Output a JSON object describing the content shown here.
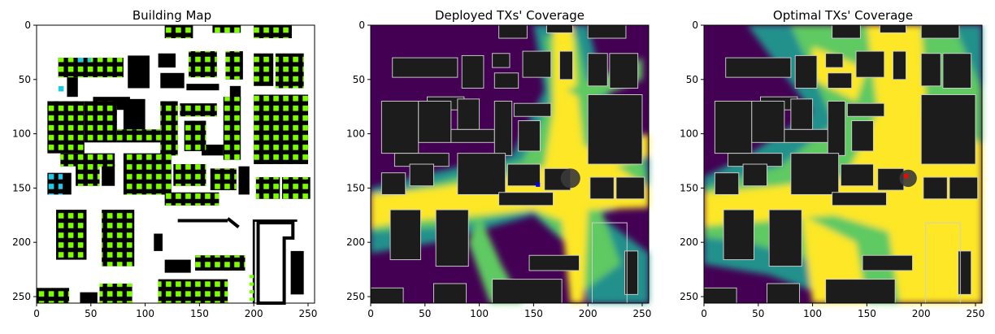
{
  "figure": {
    "background": "#ffffff",
    "colors": {
      "building_fill": "#000000",
      "building_marker": "#7cff00",
      "building_marker_alt": "#22c8e8",
      "coverage_low": "#440154",
      "coverage_mid_low": "#21918c",
      "coverage_mid_high": "#5ec962",
      "coverage_high": "#fde725",
      "coverage_building": "#1c1c1c",
      "coverage_building_edge": "#cfcfcf",
      "tx_deployed": "#0000ff",
      "tx_optimal": "#ff0000"
    }
  },
  "chart_data": [
    {
      "type": "heatmap",
      "title": "Building Map",
      "xlim": [
        0,
        256
      ],
      "ylim": [
        256,
        0
      ],
      "x_ticks": [
        0,
        50,
        100,
        150,
        200,
        250
      ],
      "y_ticks": [
        0,
        50,
        100,
        150,
        200,
        250
      ],
      "y_inverted": true,
      "grid": false
    },
    {
      "type": "heatmap",
      "title": "Deployed TXs' Coverage",
      "xlim": [
        0,
        256
      ],
      "ylim": [
        256,
        0
      ],
      "x_ticks": [
        0,
        50,
        100,
        150,
        200,
        250
      ],
      "y_ticks": [
        0,
        50,
        100,
        150,
        200,
        250
      ],
      "y_inverted": true,
      "grid": false,
      "transmitters": [
        {
          "x": 154,
          "y": 147
        }
      ]
    },
    {
      "type": "heatmap",
      "title": "Optimal TXs' Coverage",
      "xlim": [
        0,
        256
      ],
      "ylim": [
        256,
        0
      ],
      "x_ticks": [
        0,
        50,
        100,
        150,
        200,
        250
      ],
      "y_ticks": [
        0,
        50,
        100,
        150,
        200,
        250
      ],
      "y_inverted": true,
      "grid": false,
      "transmitters": [
        {
          "x": 186,
          "y": 139
        }
      ]
    }
  ]
}
